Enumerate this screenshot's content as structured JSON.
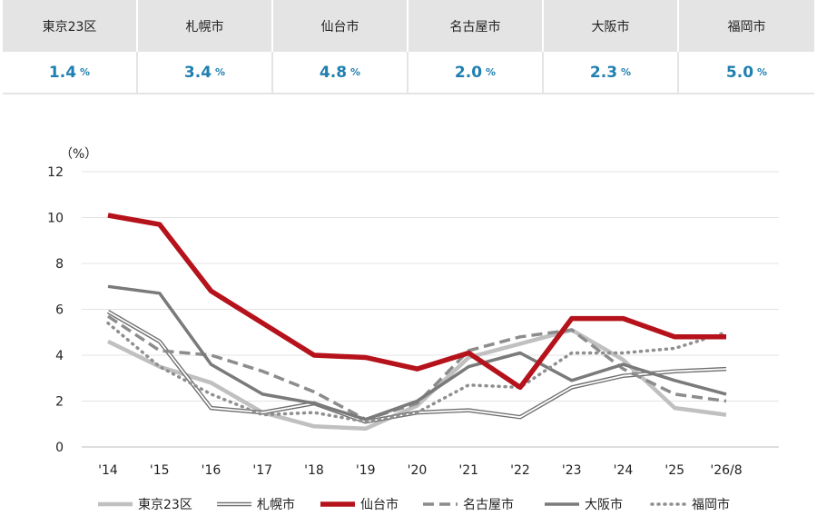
{
  "summary": {
    "cities": [
      "東京23区",
      "札幌市",
      "仙台市",
      "名古屋市",
      "大阪市",
      "福岡市"
    ],
    "values": [
      "1.4",
      "3.4",
      "4.8",
      "2.0",
      "2.3",
      "5.0"
    ],
    "unit": "%"
  },
  "chart_data": {
    "type": "line",
    "ylabel": "（%）",
    "ylim": [
      0,
      12
    ],
    "yticks": [
      0,
      2,
      4,
      6,
      8,
      10,
      12
    ],
    "grid": true,
    "legend_position": "bottom",
    "categories": [
      "'14",
      "'15",
      "'16",
      "'17",
      "'18",
      "'19",
      "'20",
      "'21",
      "'22",
      "'23",
      "'24",
      "'25",
      "'26/8"
    ],
    "series": [
      {
        "name": "東京23区",
        "style": "solid-light-gray",
        "color": "#c0c0c0",
        "values": [
          4.6,
          3.5,
          2.8,
          1.5,
          0.9,
          0.8,
          1.8,
          3.9,
          4.5,
          5.1,
          3.8,
          1.7,
          1.4
        ]
      },
      {
        "name": "札幌市",
        "style": "double-line",
        "color": "#6e6e6e",
        "values": [
          5.9,
          4.6,
          1.7,
          1.5,
          1.9,
          1.1,
          1.5,
          1.6,
          1.3,
          2.6,
          3.1,
          3.3,
          3.4
        ]
      },
      {
        "name": "仙台市",
        "style": "thick-solid-red",
        "color": "#b5121b",
        "values": [
          10.1,
          9.7,
          6.8,
          5.4,
          4.0,
          3.9,
          3.4,
          4.1,
          2.6,
          5.6,
          5.6,
          4.8,
          4.8
        ]
      },
      {
        "name": "名古屋市",
        "style": "dashed-gray",
        "color": "#8c8c8c",
        "values": [
          5.7,
          4.2,
          4.0,
          3.3,
          2.4,
          1.2,
          1.9,
          4.2,
          4.8,
          5.1,
          3.4,
          2.3,
          2.0
        ]
      },
      {
        "name": "大阪市",
        "style": "solid-gray",
        "color": "#7a7a7a",
        "values": [
          7.0,
          6.7,
          3.6,
          2.3,
          1.9,
          1.2,
          2.0,
          3.5,
          4.1,
          2.9,
          3.6,
          2.9,
          2.3
        ]
      },
      {
        "name": "福岡市",
        "style": "dotted-gray",
        "color": "#8f8f8f",
        "values": [
          5.4,
          3.5,
          2.3,
          1.4,
          1.5,
          1.1,
          1.5,
          2.7,
          2.6,
          4.1,
          4.1,
          4.3,
          5.0
        ]
      }
    ]
  }
}
